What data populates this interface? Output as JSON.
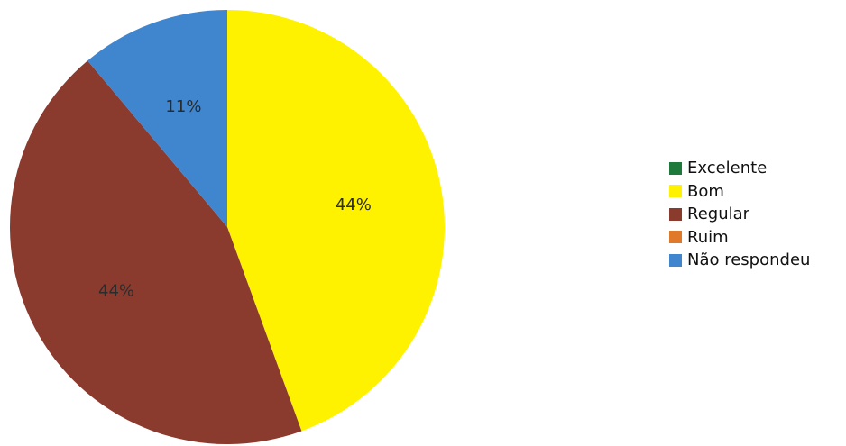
{
  "chart_data": {
    "type": "pie",
    "title": "",
    "categories": [
      "Excelente",
      "Bom",
      "Regular",
      "Ruim",
      "Não respondeu"
    ],
    "values": [
      0,
      44,
      44,
      0,
      11
    ],
    "labels": [
      "",
      "44%",
      "44%",
      "",
      "11%"
    ],
    "colors": [
      "#1e7a3a",
      "#fff200",
      "#8b3a2e",
      "#e07a2a",
      "#3f86cf"
    ],
    "start_angle_deg": 0,
    "direction": "clockwise",
    "legend_position": "right"
  }
}
